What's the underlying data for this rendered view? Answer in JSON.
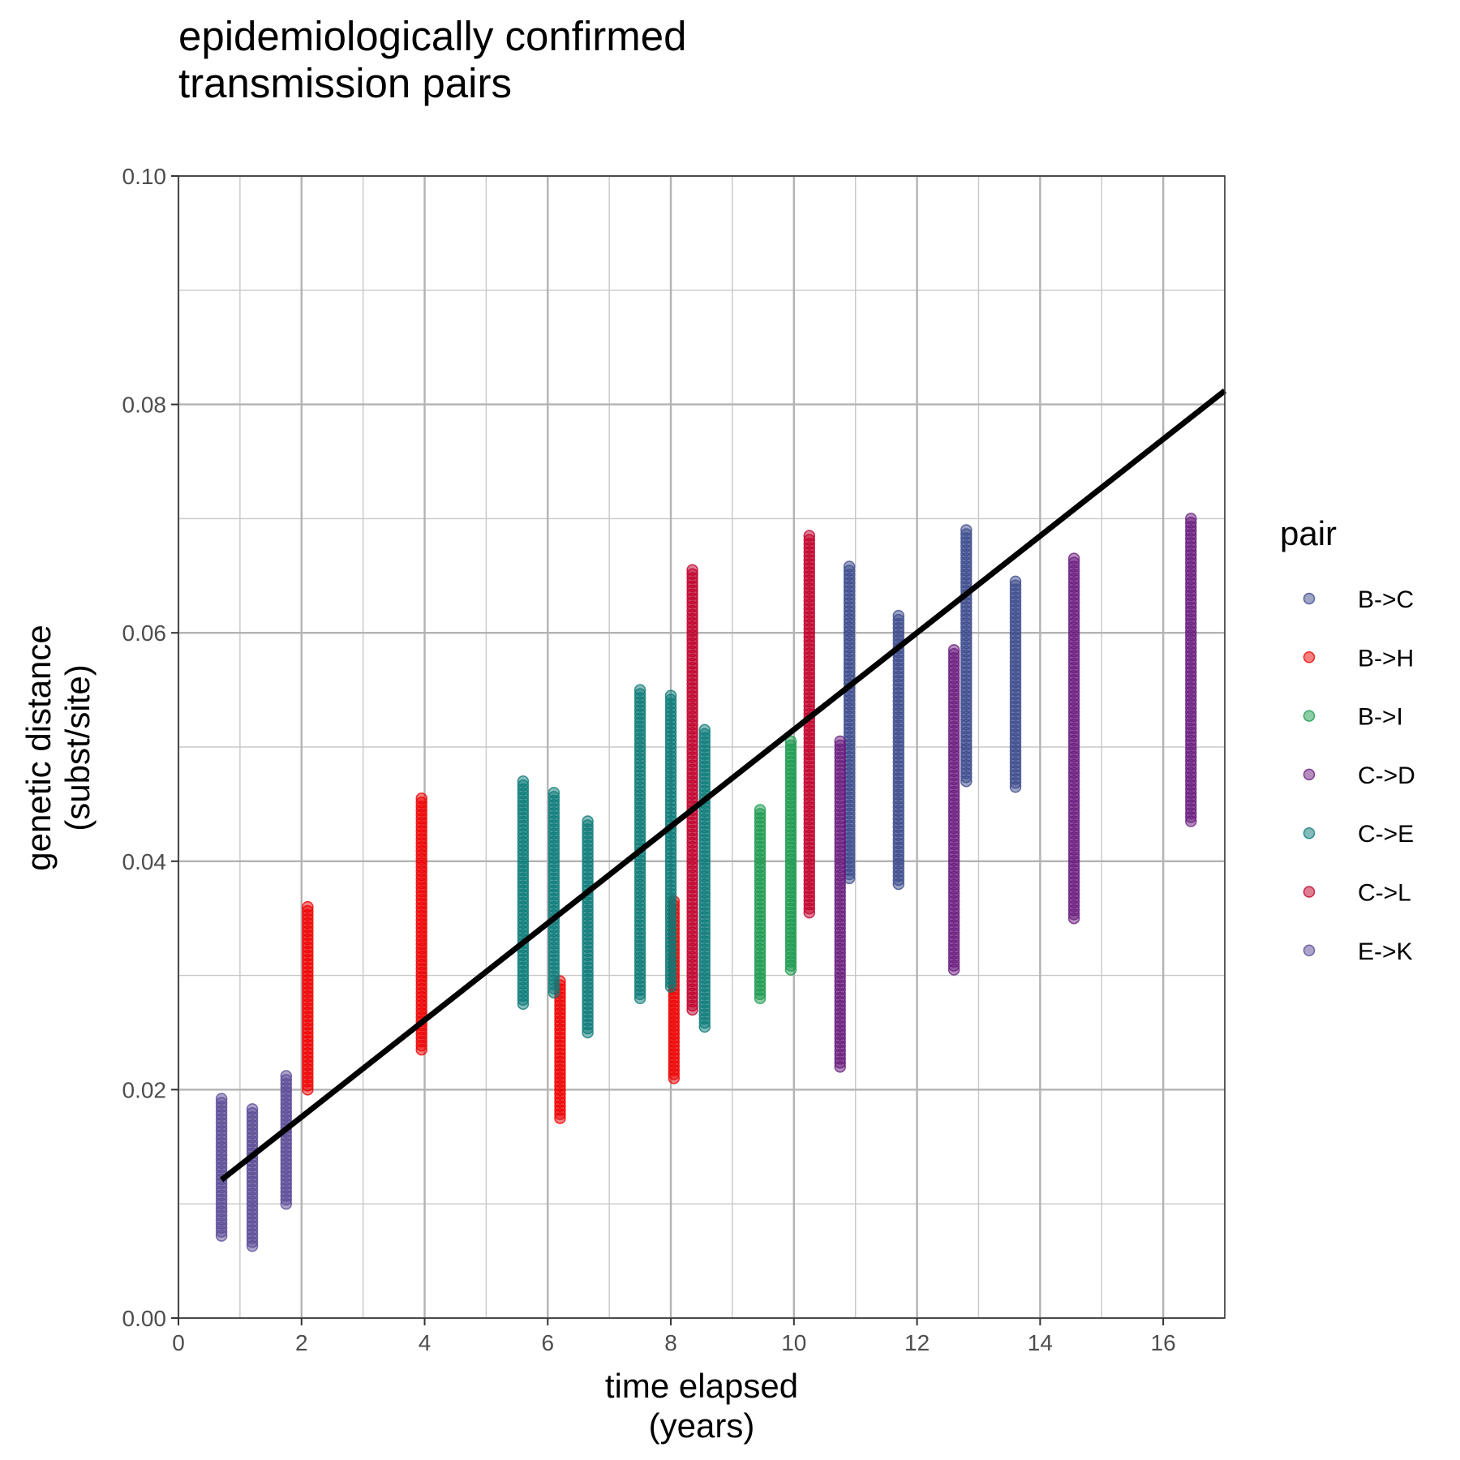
{
  "chart_data": {
    "type": "scatter",
    "title_lines": [
      "epidemiologically confirmed",
      "transmission pairs"
    ],
    "xlabel_lines": [
      "time elapsed",
      "(years)"
    ],
    "ylabel_lines": [
      "genetic distance",
      "(subst/site)"
    ],
    "xlim": [
      0,
      17
    ],
    "ylim": [
      0,
      0.1
    ],
    "x_ticks": [
      0,
      2,
      4,
      6,
      8,
      10,
      12,
      14,
      16
    ],
    "x_tick_labels": [
      "0",
      "2",
      "4",
      "6",
      "8",
      "10",
      "12",
      "14",
      "16"
    ],
    "y_ticks": [
      0,
      0.02,
      0.04,
      0.06,
      0.08,
      0.1
    ],
    "y_tick_labels": [
      "0.00",
      "0.02",
      "0.04",
      "0.06",
      "0.08",
      "0.10"
    ],
    "grid": true,
    "legend_title": "pair",
    "legend_position": "right",
    "series": [
      {
        "name": "B->C",
        "color": "#3b4a8c",
        "groups": [
          {
            "x": 10.9,
            "y_min": 0.0385,
            "y_max": 0.0658
          },
          {
            "x": 11.7,
            "y_min": 0.038,
            "y_max": 0.0615
          },
          {
            "x": 12.8,
            "y_min": 0.047,
            "y_max": 0.069
          },
          {
            "x": 13.6,
            "y_min": 0.0465,
            "y_max": 0.0645
          }
        ]
      },
      {
        "name": "B->H",
        "color": "#ee0000",
        "groups": [
          {
            "x": 2.1,
            "y_min": 0.02,
            "y_max": 0.036
          },
          {
            "x": 3.95,
            "y_min": 0.0235,
            "y_max": 0.0455
          },
          {
            "x": 6.2,
            "y_min": 0.0175,
            "y_max": 0.0295
          },
          {
            "x": 8.05,
            "y_min": 0.021,
            "y_max": 0.0365
          }
        ]
      },
      {
        "name": "B->I",
        "color": "#1a9a4e",
        "groups": [
          {
            "x": 9.45,
            "y_min": 0.028,
            "y_max": 0.0445
          },
          {
            "x": 9.95,
            "y_min": 0.0305,
            "y_max": 0.0505
          }
        ]
      },
      {
        "name": "C->D",
        "color": "#6a1b7e",
        "groups": [
          {
            "x": 10.75,
            "y_min": 0.022,
            "y_max": 0.0505
          },
          {
            "x": 12.6,
            "y_min": 0.0305,
            "y_max": 0.0585
          },
          {
            "x": 14.55,
            "y_min": 0.035,
            "y_max": 0.0665
          },
          {
            "x": 16.45,
            "y_min": 0.0435,
            "y_max": 0.07
          }
        ]
      },
      {
        "name": "C->E",
        "color": "#0a7a78",
        "groups": [
          {
            "x": 5.6,
            "y_min": 0.0275,
            "y_max": 0.047
          },
          {
            "x": 6.1,
            "y_min": 0.0285,
            "y_max": 0.046
          },
          {
            "x": 6.65,
            "y_min": 0.025,
            "y_max": 0.0435
          },
          {
            "x": 7.5,
            "y_min": 0.028,
            "y_max": 0.055
          },
          {
            "x": 8.0,
            "y_min": 0.029,
            "y_max": 0.0545
          },
          {
            "x": 8.55,
            "y_min": 0.0255,
            "y_max": 0.0515
          }
        ]
      },
      {
        "name": "C->L",
        "color": "#c0002a",
        "groups": [
          {
            "x": 8.35,
            "y_min": 0.027,
            "y_max": 0.0655
          },
          {
            "x": 10.25,
            "y_min": 0.0355,
            "y_max": 0.0685
          }
        ]
      },
      {
        "name": "E->K",
        "color": "#5a4a96",
        "groups": [
          {
            "x": 0.7,
            "y_min": 0.0072,
            "y_max": 0.0192
          },
          {
            "x": 1.2,
            "y_min": 0.0063,
            "y_max": 0.0183
          },
          {
            "x": 1.75,
            "y_min": 0.01,
            "y_max": 0.0212
          }
        ]
      }
    ],
    "fit_line": {
      "x": [
        0.7,
        17
      ],
      "y": [
        0.0121,
        0.0812
      ],
      "color": "#000000"
    }
  }
}
